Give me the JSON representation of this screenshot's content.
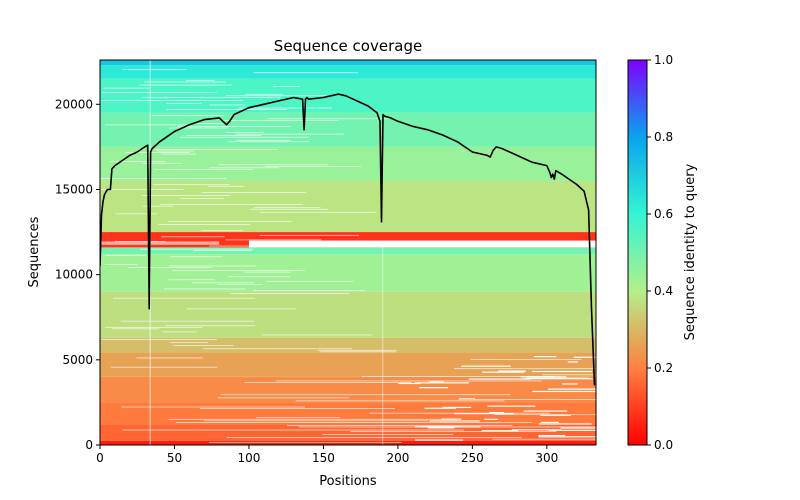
{
  "chart_data": {
    "type": "heatmap",
    "title": "Sequence coverage",
    "xlabel": "Positions",
    "ylabel": "Sequences",
    "xlim": [
      0,
      333
    ],
    "ylim": [
      0,
      22600
    ],
    "xticks": [
      0,
      50,
      100,
      150,
      200,
      250,
      300
    ],
    "yticks": [
      0,
      5000,
      10000,
      15000,
      20000
    ],
    "colorbar": {
      "label": "Sequence identity to query",
      "range": [
        0,
        1
      ],
      "ticks": [
        "0.0",
        "0.2",
        "0.4",
        "0.6",
        "0.8",
        "1.0"
      ],
      "colormap": "rainbow_r"
    },
    "identity_bands": [
      {
        "y0": 0,
        "y1": 250,
        "identity": 0.04
      },
      {
        "y0": 250,
        "y1": 1200,
        "identity": 0.16
      },
      {
        "y0": 1200,
        "y1": 2500,
        "identity": 0.19
      },
      {
        "y0": 2500,
        "y1": 4000,
        "identity": 0.22
      },
      {
        "y0": 4000,
        "y1": 5400,
        "identity": 0.26
      },
      {
        "y0": 5400,
        "y1": 6300,
        "identity": 0.31
      },
      {
        "y0": 6300,
        "y1": 9000,
        "identity": 0.37
      },
      {
        "y0": 9000,
        "y1": 11200,
        "identity": 0.43
      },
      {
        "y0": 11200,
        "y1": 11600,
        "identity": 0.5
      },
      {
        "y0": 11600,
        "y1": 12500,
        "identity": 0.08
      },
      {
        "y0": 12500,
        "y1": 15500,
        "identity": 0.38
      },
      {
        "y0": 15500,
        "y1": 17500,
        "identity": 0.44
      },
      {
        "y0": 17500,
        "y1": 19500,
        "identity": 0.5
      },
      {
        "y0": 19500,
        "y1": 21500,
        "identity": 0.56
      },
      {
        "y0": 21500,
        "y1": 22300,
        "identity": 0.63
      },
      {
        "y0": 22300,
        "y1": 22600,
        "identity": 0.72
      }
    ],
    "coverage_line": {
      "x": [
        0,
        1,
        2,
        3,
        5,
        7,
        8,
        10,
        15,
        20,
        25,
        30,
        32,
        33,
        34,
        35,
        40,
        50,
        60,
        70,
        80,
        85,
        87,
        90,
        100,
        110,
        120,
        130,
        136,
        137,
        138,
        139,
        140,
        150,
        155,
        160,
        165,
        170,
        180,
        186,
        188,
        189,
        190,
        191,
        195,
        200,
        210,
        220,
        230,
        240,
        250,
        260,
        262,
        264,
        266,
        270,
        280,
        290,
        300,
        302,
        303,
        304,
        305,
        306,
        310,
        320,
        325,
        328,
        330,
        332
      ],
      "y": [
        10500,
        13500,
        14300,
        14700,
        15000,
        15000,
        16200,
        16400,
        16700,
        17000,
        17200,
        17500,
        17600,
        8000,
        17200,
        17400,
        17800,
        18400,
        18800,
        19100,
        19200,
        18800,
        19000,
        19400,
        19800,
        20000,
        20200,
        20400,
        20300,
        18500,
        20300,
        20400,
        20300,
        20400,
        20500,
        20600,
        20500,
        20300,
        19900,
        19500,
        19000,
        13100,
        19400,
        19300,
        19200,
        19000,
        18700,
        18500,
        18200,
        17800,
        17200,
        17000,
        16900,
        17300,
        17500,
        17400,
        17000,
        16600,
        16400,
        16000,
        15700,
        15900,
        15600,
        16100,
        15900,
        15300,
        14900,
        13800,
        8000,
        3500
      ]
    }
  }
}
